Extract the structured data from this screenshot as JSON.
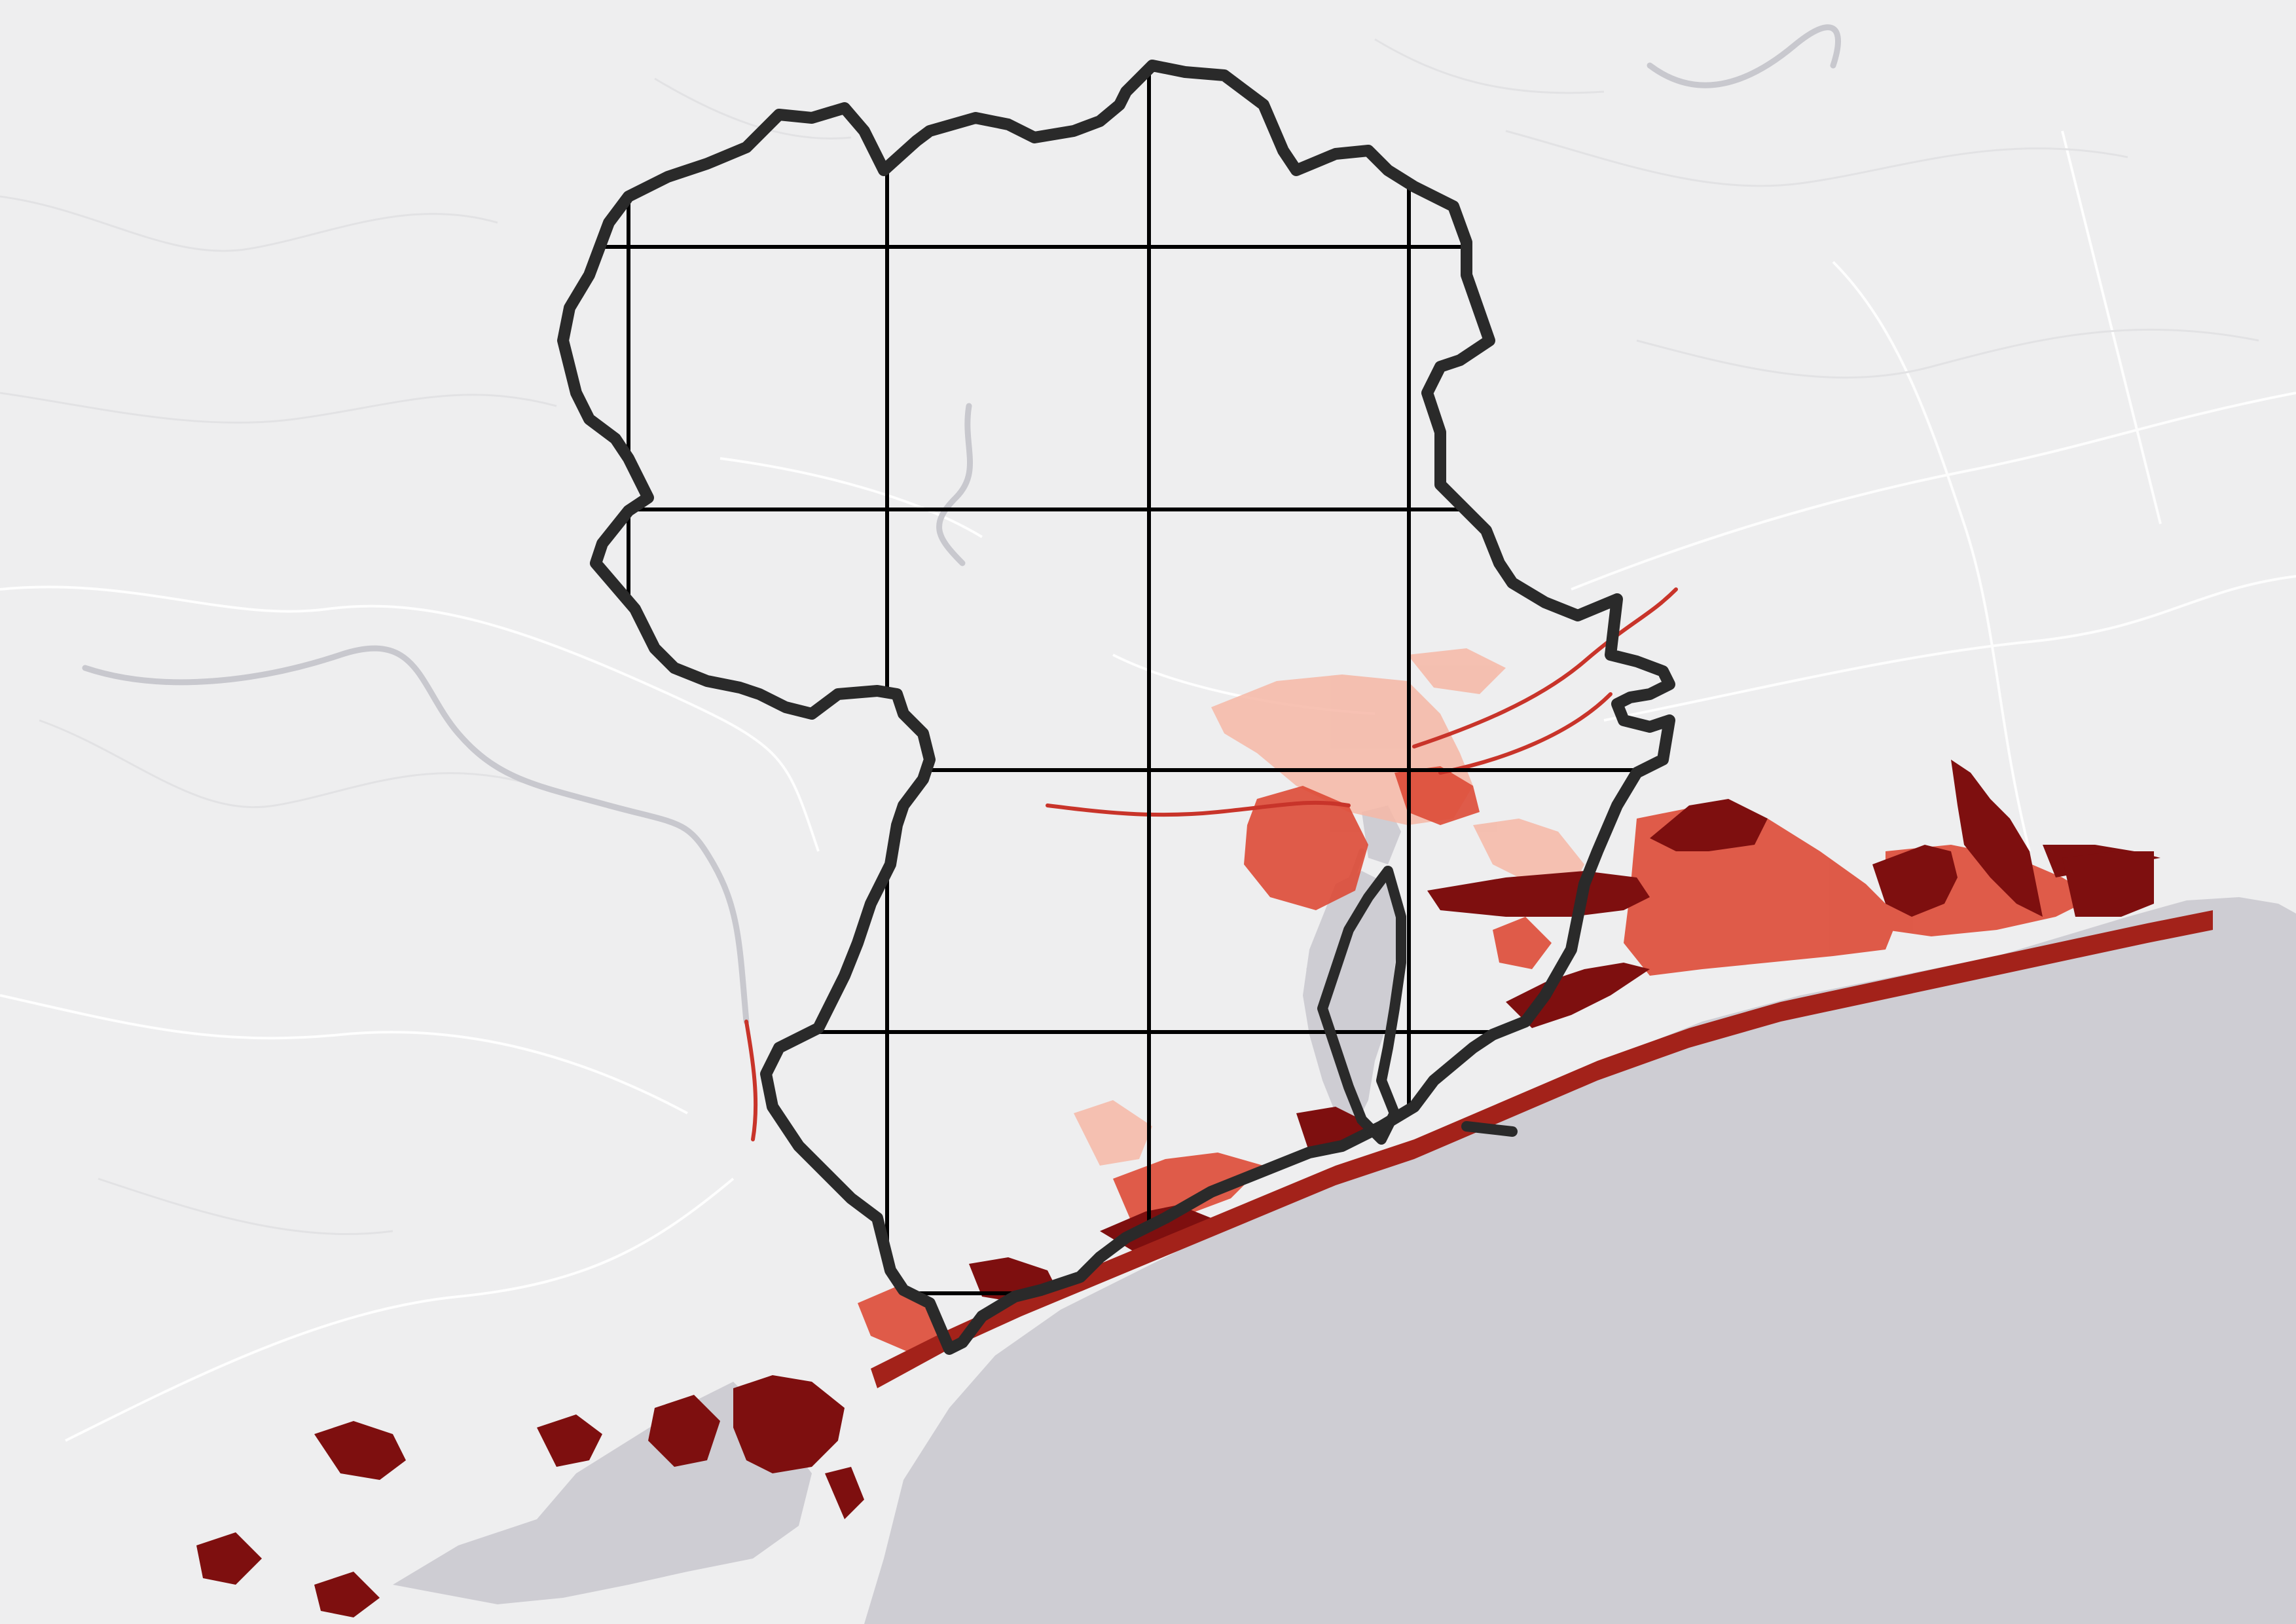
{
  "map": {
    "kind": "flood-hazard-map",
    "labels": [],
    "colors": {
      "land": "#eeeeef",
      "water": "#cecdd3",
      "river": "#c8c8ce",
      "road": "#ffffff",
      "boundary": "#2a2a2a",
      "grid": "#000000",
      "flood_light": "#f6b7a6",
      "flood_mid": "#dd4a36",
      "flood_dark": "#7e0f0f"
    },
    "grid": {
      "columns": 4,
      "rows": 4
    }
  }
}
